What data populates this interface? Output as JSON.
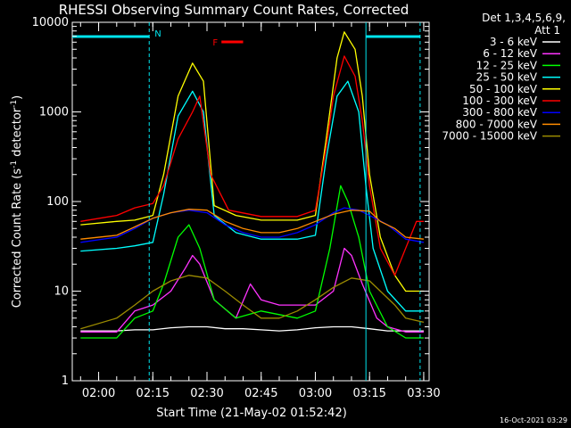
{
  "chart_data": {
    "type": "line",
    "title": "RHESSI Observing Summary Count Rates, Corrected",
    "xlabel": "Start Time (21-May-02 01:52:42)",
    "ylabel_main": "Corrected Count Rate (s",
    "ylabel_sup": "-1",
    "ylabel_mid": " detector",
    "ylabel_end": ")",
    "y_scale": "log",
    "ylim": [
      1,
      10000
    ],
    "xlim": [
      "01:52:42",
      "03:31:30"
    ],
    "x_ticks": [
      "02:00",
      "02:15",
      "02:30",
      "02:45",
      "03:00",
      "03:15",
      "03:30"
    ],
    "y_ticks": [
      "1",
      "10",
      "100",
      "1000",
      "10000"
    ],
    "legend": {
      "position": "top-right",
      "header": [
        "Det 1,3,4,5,6,9,",
        "Att 1"
      ]
    },
    "timestamp": "16-Oct-2021 03:29",
    "annotations": [
      {
        "label": "N",
        "color": "#00e5ee",
        "type": "night"
      },
      {
        "label": "F",
        "color": "#ff0000",
        "type": "flare"
      }
    ],
    "series": [
      {
        "name": "3 - 6 keV",
        "color": "#ffffff",
        "points": [
          [
            "01:55",
            3.6
          ],
          [
            "02:05",
            3.6
          ],
          [
            "02:10",
            3.7
          ],
          [
            "02:15",
            3.7
          ],
          [
            "02:20",
            3.9
          ],
          [
            "02:25",
            4.0
          ],
          [
            "02:30",
            4.0
          ],
          [
            "02:35",
            3.8
          ],
          [
            "02:40",
            3.8
          ],
          [
            "02:45",
            3.7
          ],
          [
            "02:50",
            3.6
          ],
          [
            "02:55",
            3.7
          ],
          [
            "03:00",
            3.9
          ],
          [
            "03:05",
            4.0
          ],
          [
            "03:10",
            4.0
          ],
          [
            "03:15",
            3.8
          ],
          [
            "03:20",
            3.6
          ],
          [
            "03:25",
            3.6
          ],
          [
            "03:30",
            3.6
          ]
        ]
      },
      {
        "name": "6 - 12 keV",
        "color": "#ff33ff",
        "points": [
          [
            "01:55",
            3.5
          ],
          [
            "02:05",
            3.5
          ],
          [
            "02:10",
            6
          ],
          [
            "02:15",
            7
          ],
          [
            "02:20",
            10
          ],
          [
            "02:24",
            18
          ],
          [
            "02:26",
            25
          ],
          [
            "02:28",
            20
          ],
          [
            "02:32",
            8
          ],
          [
            "02:38",
            5
          ],
          [
            "02:42",
            12
          ],
          [
            "02:45",
            8
          ],
          [
            "02:50",
            7
          ],
          [
            "02:55",
            7
          ],
          [
            "03:00",
            7
          ],
          [
            "03:05",
            10
          ],
          [
            "03:08",
            30
          ],
          [
            "03:10",
            25
          ],
          [
            "03:13",
            12
          ],
          [
            "03:17",
            5
          ],
          [
            "03:20",
            4
          ],
          [
            "03:25",
            3.5
          ],
          [
            "03:30",
            3.5
          ]
        ]
      },
      {
        "name": "12 - 25 keV",
        "color": "#00ff00",
        "points": [
          [
            "01:55",
            3
          ],
          [
            "02:05",
            3
          ],
          [
            "02:10",
            5
          ],
          [
            "02:15",
            6
          ],
          [
            "02:18",
            12
          ],
          [
            "02:22",
            40
          ],
          [
            "02:25",
            55
          ],
          [
            "02:28",
            30
          ],
          [
            "02:32",
            8
          ],
          [
            "02:38",
            5
          ],
          [
            "02:45",
            6
          ],
          [
            "02:55",
            5
          ],
          [
            "03:00",
            6
          ],
          [
            "03:04",
            30
          ],
          [
            "03:07",
            150
          ],
          [
            "03:09",
            100
          ],
          [
            "03:12",
            40
          ],
          [
            "03:15",
            10
          ],
          [
            "03:20",
            4
          ],
          [
            "03:25",
            3
          ],
          [
            "03:30",
            3
          ]
        ]
      },
      {
        "name": "25 - 50 keV",
        "color": "#00ffff",
        "points": [
          [
            "01:55",
            28
          ],
          [
            "02:05",
            30
          ],
          [
            "02:10",
            32
          ],
          [
            "02:15",
            35
          ],
          [
            "02:18",
            120
          ],
          [
            "02:22",
            900
          ],
          [
            "02:26",
            1700
          ],
          [
            "02:29",
            1000
          ],
          [
            "02:32",
            70
          ],
          [
            "02:38",
            45
          ],
          [
            "02:45",
            38
          ],
          [
            "02:55",
            38
          ],
          [
            "03:00",
            42
          ],
          [
            "03:03",
            300
          ],
          [
            "03:06",
            1500
          ],
          [
            "03:09",
            2200
          ],
          [
            "03:12",
            1000
          ],
          [
            "03:14",
            150
          ],
          [
            "03:16",
            30
          ],
          [
            "03:20",
            10
          ],
          [
            "03:25",
            6
          ],
          [
            "03:30",
            6
          ]
        ]
      },
      {
        "name": "50 - 100 keV",
        "color": "#ffff00",
        "points": [
          [
            "01:55",
            55
          ],
          [
            "02:05",
            60
          ],
          [
            "02:10",
            62
          ],
          [
            "02:15",
            70
          ],
          [
            "02:18",
            200
          ],
          [
            "02:22",
            1500
          ],
          [
            "02:26",
            3500
          ],
          [
            "02:29",
            2200
          ],
          [
            "02:32",
            90
          ],
          [
            "02:38",
            70
          ],
          [
            "02:45",
            62
          ],
          [
            "02:55",
            62
          ],
          [
            "03:00",
            70
          ],
          [
            "03:03",
            500
          ],
          [
            "03:06",
            4000
          ],
          [
            "03:08",
            7800
          ],
          [
            "03:11",
            5000
          ],
          [
            "03:13",
            1500
          ],
          [
            "03:15",
            200
          ],
          [
            "03:18",
            40
          ],
          [
            "03:22",
            15
          ],
          [
            "03:25",
            10
          ],
          [
            "03:30",
            10
          ]
        ]
      },
      {
        "name": "100 - 300 keV",
        "color": "#ff0000",
        "points": [
          [
            "01:55",
            60
          ],
          [
            "02:05",
            70
          ],
          [
            "02:10",
            85
          ],
          [
            "02:15",
            95
          ],
          [
            "02:18",
            150
          ],
          [
            "02:22",
            500
          ],
          [
            "02:26",
            1000
          ],
          [
            "02:28",
            1500
          ],
          [
            "02:31",
            200
          ],
          [
            "02:36",
            80
          ],
          [
            "02:45",
            68
          ],
          [
            "02:55",
            68
          ],
          [
            "03:00",
            80
          ],
          [
            "03:03",
            400
          ],
          [
            "03:05",
            1500
          ],
          [
            "03:08",
            4200
          ],
          [
            "03:11",
            2500
          ],
          [
            "03:13",
            800
          ],
          [
            "03:15",
            150
          ],
          [
            "03:18",
            30
          ],
          [
            "03:22",
            15
          ],
          [
            "03:28",
            60
          ],
          [
            "03:30",
            60
          ]
        ]
      },
      {
        "name": "300 - 800 keV",
        "color": "#0000ff",
        "points": [
          [
            "01:55",
            35
          ],
          [
            "02:05",
            40
          ],
          [
            "02:10",
            50
          ],
          [
            "02:15",
            65
          ],
          [
            "02:20",
            75
          ],
          [
            "02:25",
            80
          ],
          [
            "02:30",
            75
          ],
          [
            "02:35",
            55
          ],
          [
            "02:40",
            45
          ],
          [
            "02:45",
            40
          ],
          [
            "02:50",
            40
          ],
          [
            "02:55",
            45
          ],
          [
            "03:00",
            55
          ],
          [
            "03:05",
            75
          ],
          [
            "03:08",
            85
          ],
          [
            "03:12",
            80
          ],
          [
            "03:15",
            70
          ],
          [
            "03:20",
            55
          ],
          [
            "03:25",
            38
          ],
          [
            "03:30",
            35
          ]
        ]
      },
      {
        "name": "800 - 7000 keV",
        "color": "#ff8c00",
        "points": [
          [
            "01:55",
            38
          ],
          [
            "02:05",
            42
          ],
          [
            "02:10",
            52
          ],
          [
            "02:15",
            65
          ],
          [
            "02:20",
            75
          ],
          [
            "02:25",
            82
          ],
          [
            "02:30",
            80
          ],
          [
            "02:35",
            60
          ],
          [
            "02:40",
            50
          ],
          [
            "02:45",
            45
          ],
          [
            "02:50",
            45
          ],
          [
            "02:55",
            50
          ],
          [
            "03:00",
            60
          ],
          [
            "03:05",
            72
          ],
          [
            "03:10",
            80
          ],
          [
            "03:15",
            78
          ],
          [
            "03:18",
            60
          ],
          [
            "03:22",
            50
          ],
          [
            "03:25",
            40
          ],
          [
            "03:30",
            38
          ]
        ]
      },
      {
        "name": "7000 - 15000 keV",
        "color": "#9b8b00",
        "points": [
          [
            "01:55",
            3.8
          ],
          [
            "02:05",
            5
          ],
          [
            "02:10",
            7
          ],
          [
            "02:15",
            10
          ],
          [
            "02:20",
            13
          ],
          [
            "02:25",
            15
          ],
          [
            "02:30",
            14
          ],
          [
            "02:35",
            10
          ],
          [
            "02:40",
            7
          ],
          [
            "02:45",
            5
          ],
          [
            "02:50",
            5
          ],
          [
            "02:55",
            6
          ],
          [
            "03:00",
            8
          ],
          [
            "03:05",
            11
          ],
          [
            "03:10",
            14
          ],
          [
            "03:15",
            13
          ],
          [
            "03:18",
            10
          ],
          [
            "03:22",
            7
          ],
          [
            "03:25",
            5
          ],
          [
            "03:30",
            4.5
          ]
        ]
      }
    ]
  }
}
